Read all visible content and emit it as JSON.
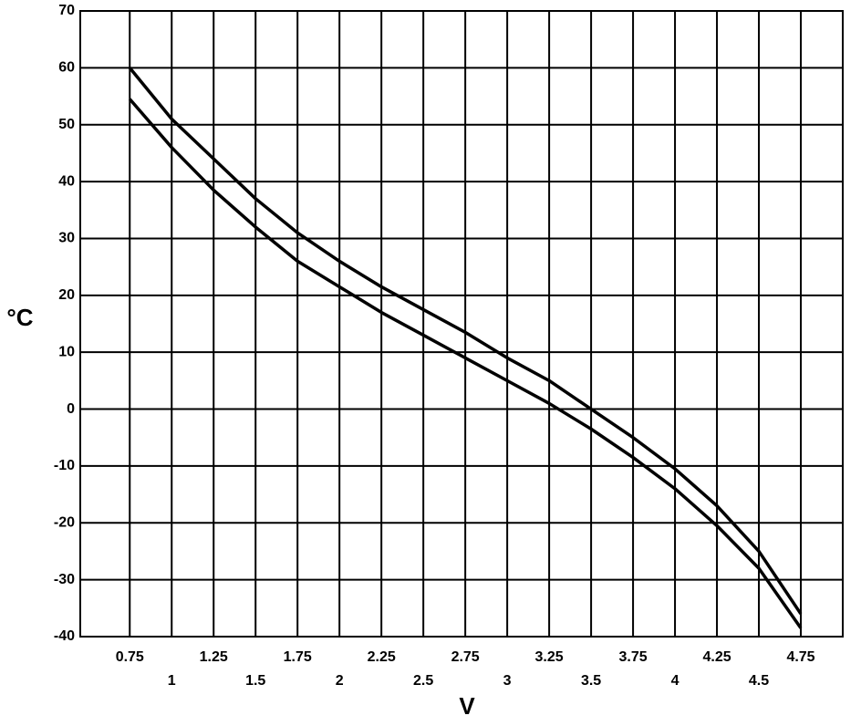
{
  "chart_data": {
    "type": "line",
    "xlabel": "V",
    "ylabel": "°C",
    "x": [
      0.75,
      1,
      1.25,
      1.5,
      1.75,
      2,
      2.25,
      2.5,
      2.75,
      3,
      3.25,
      3.5,
      3.75,
      4,
      4.25,
      4.5,
      4.75
    ],
    "series": [
      {
        "color": "#000000",
        "values": [
          60,
          51,
          44,
          37,
          31,
          26,
          21.5,
          17.5,
          13.5,
          9,
          5,
          0,
          -5,
          -10.5,
          -17,
          -25,
          -36
        ]
      },
      {
        "color": "#000000",
        "values": [
          54.5,
          46,
          38.5,
          32,
          26,
          21.5,
          17,
          13,
          9,
          5,
          1,
          -3.5,
          -8.5,
          -14,
          -20.5,
          -28,
          -38.5
        ]
      }
    ],
    "xlim": [
      0.455,
      5.0
    ],
    "xticks": [
      0.75,
      1,
      1.25,
      1.5,
      1.75,
      2,
      2.25,
      2.5,
      2.75,
      3,
      3.25,
      3.5,
      3.75,
      4,
      4.25,
      4.5,
      4.75
    ],
    "ylim": [
      -40,
      70
    ],
    "yticks": [
      -40,
      -30,
      -20,
      -10,
      0,
      10,
      20,
      30,
      40,
      50,
      60,
      70
    ],
    "grid": true
  }
}
